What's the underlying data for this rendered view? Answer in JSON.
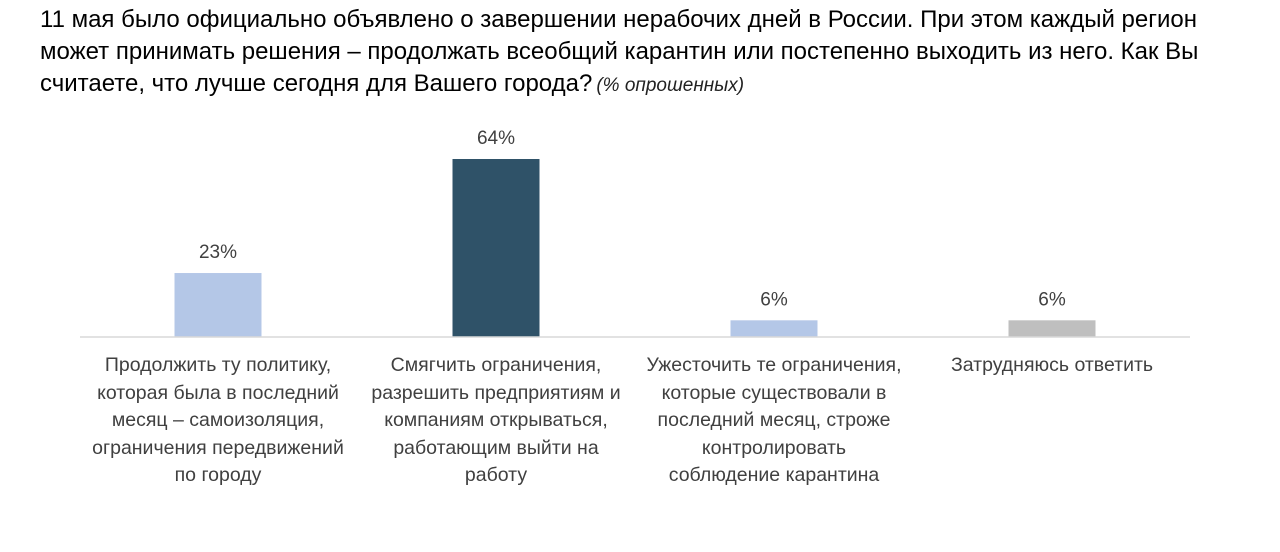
{
  "chart_data": {
    "type": "bar",
    "title": "11 мая было официально объявлено о завершении нерабочих дней в России. При этом каждый регион может принимать решения – продолжать всеобщий карантин или постепенно выходить из него. Как Вы считаете, что лучше сегодня для Вашего города?",
    "title_note": "(% опрошенных)",
    "categories": [
      "Продолжить ту политику,\nкоторая была в последний\nмесяц – самоизоляция,\nограничения передвижений\nпо городу",
      "Смягчить ограничения,\nразрешить предприятиям и\nкомпаниям открываться,\nработающим выйти на\nработу",
      "Ужесточить те ограничения,\nкоторые существовали в\nпоследний месяц, строже\nконтролировать\nсоблюдение карантина",
      "Затрудняюсь ответить"
    ],
    "values": [
      23,
      64,
      6,
      6
    ],
    "data_labels": [
      "23%",
      "64%",
      "6%",
      "6%"
    ],
    "colors": [
      "#b4c7e7",
      "#2f5268",
      "#b4c7e7",
      "#bfbfbf"
    ],
    "ylim": [
      0,
      70
    ],
    "grid": false,
    "legend": "none"
  }
}
